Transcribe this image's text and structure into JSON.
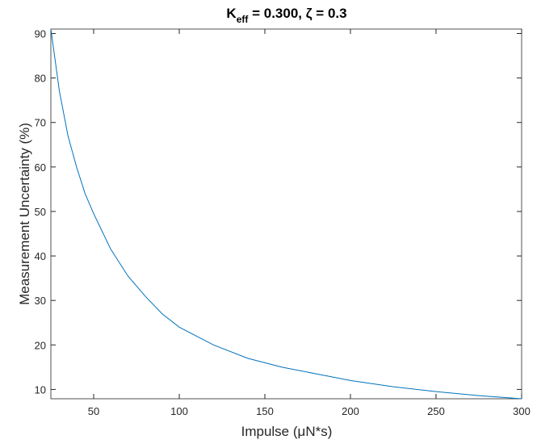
{
  "chart_data": {
    "type": "line",
    "title": {
      "base": "K",
      "subscript": "eff",
      "rest": " = 0.300, ζ = 0.3"
    },
    "xlabel": "Impulse (μN*s)",
    "ylabel": "Measurement Uncertainty (%)",
    "x": [
      25,
      30,
      35,
      40,
      45,
      50,
      60,
      70,
      80,
      90,
      100,
      120,
      140,
      160,
      180,
      200,
      225,
      250,
      275,
      300
    ],
    "series": [
      {
        "name": "Uncertainty",
        "color": "#0072bd",
        "values": [
          91,
          77,
          67,
          60,
          54,
          49.5,
          41.5,
          35.5,
          31,
          27,
          24,
          20,
          17,
          15,
          13.5,
          12,
          10.6,
          9.5,
          8.6,
          7.9
        ]
      }
    ],
    "xlim": [
      25,
      300
    ],
    "xticks": [
      50,
      100,
      150,
      200,
      250,
      300
    ],
    "ylim": [
      7.9,
      91
    ],
    "yticks": [
      10,
      20,
      30,
      40,
      50,
      60,
      70,
      80,
      90
    ],
    "grid": false
  }
}
